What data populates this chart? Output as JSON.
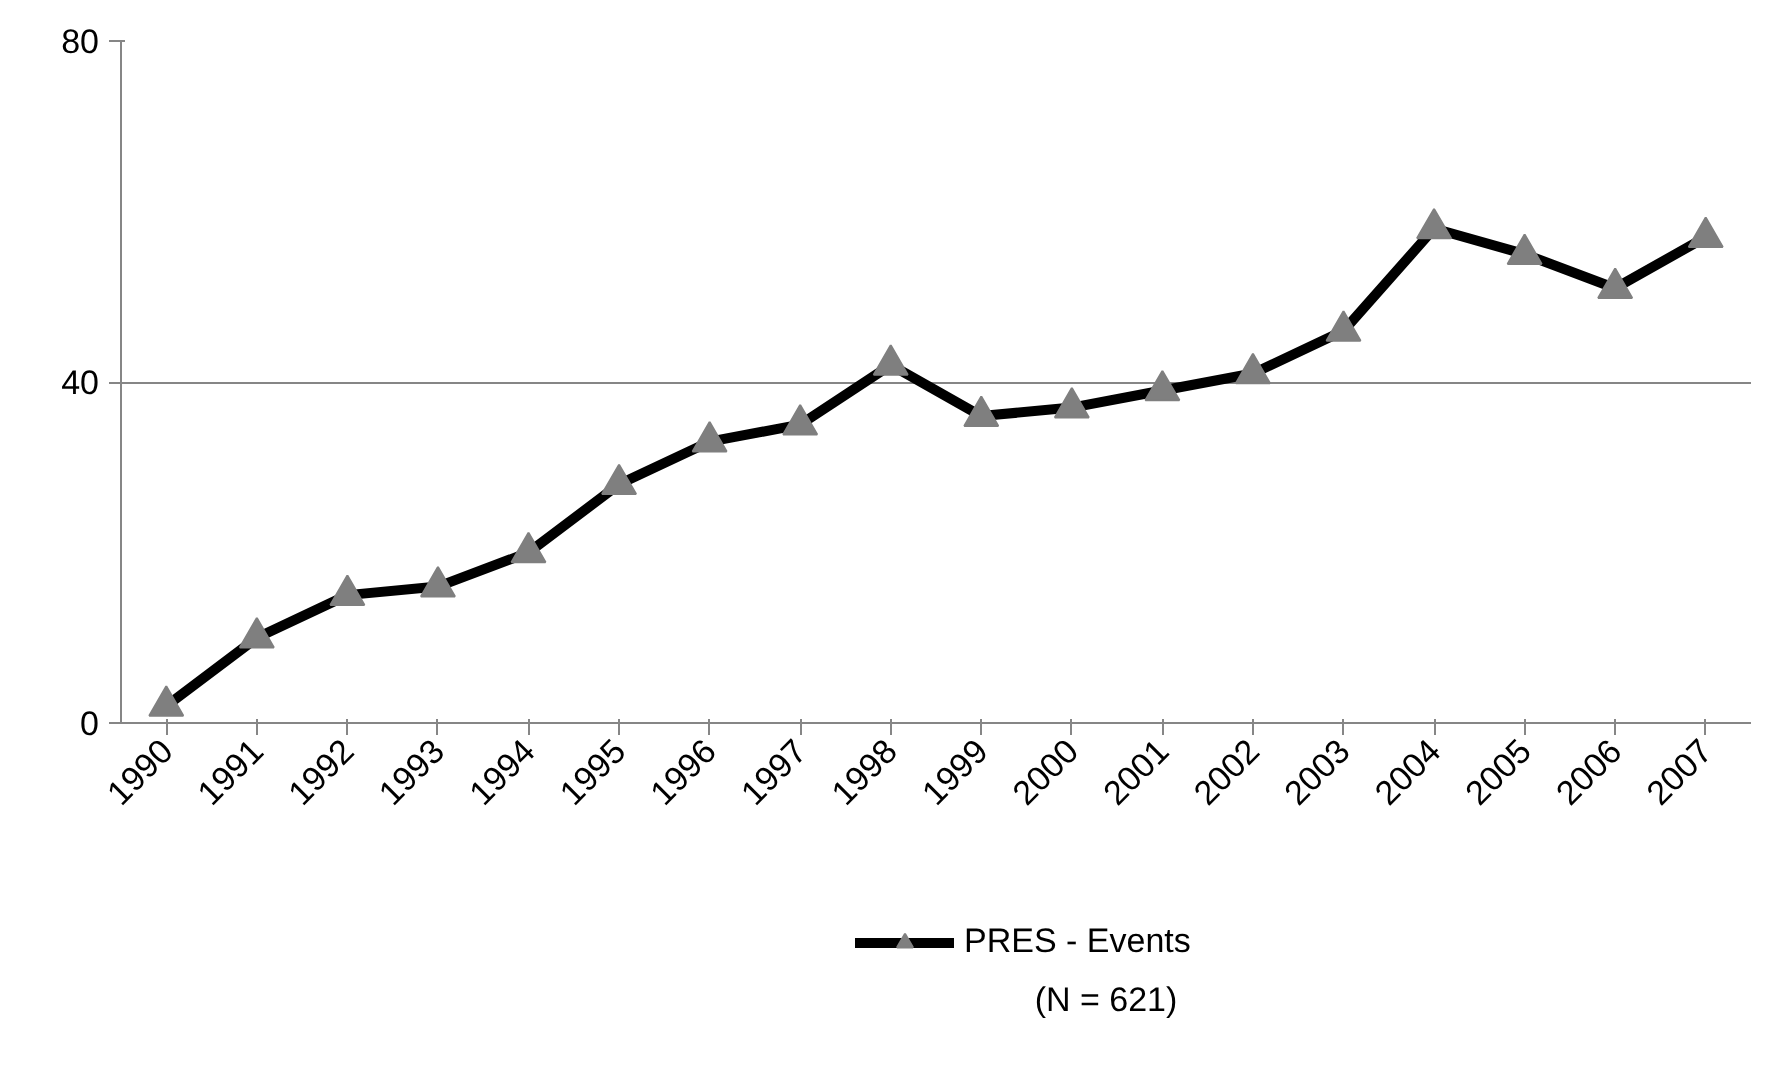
{
  "chart_data": {
    "type": "line",
    "categories": [
      "1990",
      "1991",
      "1992",
      "1993",
      "1994",
      "1995",
      "1996",
      "1997",
      "1998",
      "1999",
      "2000",
      "2001",
      "2002",
      "2003",
      "2004",
      "2005",
      "2006",
      "2007"
    ],
    "series": [
      {
        "name": "PRES - Events",
        "color": "#000000",
        "values": [
          2,
          10,
          15,
          16,
          20,
          28,
          33,
          35,
          42,
          36,
          37,
          39,
          41,
          46,
          58,
          55,
          51,
          57
        ]
      }
    ],
    "ylim": [
      0,
      80
    ],
    "yticks": [
      0,
      40,
      80
    ],
    "grid": "y",
    "legend": "bottom",
    "marker": "triangle",
    "line_style": "solid",
    "annotations": [
      "(N = 621)"
    ]
  }
}
